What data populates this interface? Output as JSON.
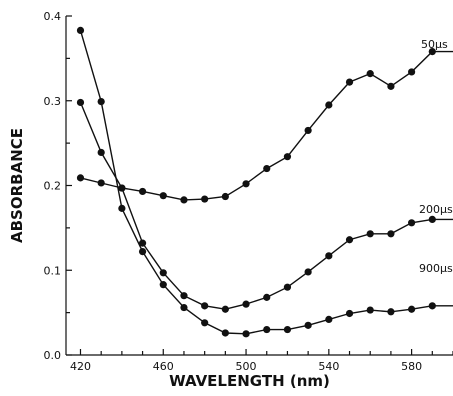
{
  "chart_data": {
    "type": "line",
    "title": "",
    "xlabel": "WAVELENGTH (nm)",
    "ylabel": "ABSORBANCE",
    "xlim": [
      413,
      600
    ],
    "ylim": [
      0.0,
      0.4
    ],
    "x_ticks": [
      420,
      460,
      500,
      540,
      580
    ],
    "y_ticks": [
      0.0,
      0.1,
      0.2,
      0.3,
      0.4
    ],
    "y_tick_labels": [
      "0.0",
      "0.1",
      "0.2",
      "0.3",
      "0.4"
    ],
    "grid": false,
    "legend": "none",
    "series": [
      {
        "name": "50μs",
        "x": [
          420,
          430,
          440,
          450,
          460,
          470,
          480,
          490,
          500,
          510,
          520,
          530,
          540,
          550,
          560,
          570,
          580,
          590,
          600
        ],
        "y": [
          0.209,
          0.203,
          0.197,
          0.193,
          0.188,
          0.183,
          0.184,
          0.187,
          0.202,
          0.22,
          0.234,
          0.265,
          0.295,
          0.322,
          0.332,
          0.317,
          0.334,
          0.358,
          0.358
        ]
      },
      {
        "name": "200μs",
        "x": [
          420,
          430,
          440,
          450,
          460,
          470,
          480,
          490,
          500,
          510,
          520,
          530,
          540,
          550,
          560,
          570,
          580,
          590,
          600
        ],
        "y": [
          0.298,
          0.239,
          0.197,
          0.132,
          0.097,
          0.07,
          0.058,
          0.054,
          0.06,
          0.068,
          0.08,
          0.098,
          0.117,
          0.136,
          0.143,
          0.143,
          0.156,
          0.16,
          0.16
        ]
      },
      {
        "name": "900μs",
        "x": [
          420,
          430,
          440,
          450,
          460,
          470,
          480,
          490,
          500,
          510,
          520,
          530,
          540,
          550,
          560,
          570,
          580,
          590,
          600
        ],
        "y": [
          0.383,
          0.299,
          0.173,
          0.122,
          0.083,
          0.056,
          0.038,
          0.026,
          0.025,
          0.03,
          0.03,
          0.035,
          0.042,
          0.049,
          0.053,
          0.051,
          0.054,
          0.058,
          0.058
        ]
      }
    ]
  }
}
